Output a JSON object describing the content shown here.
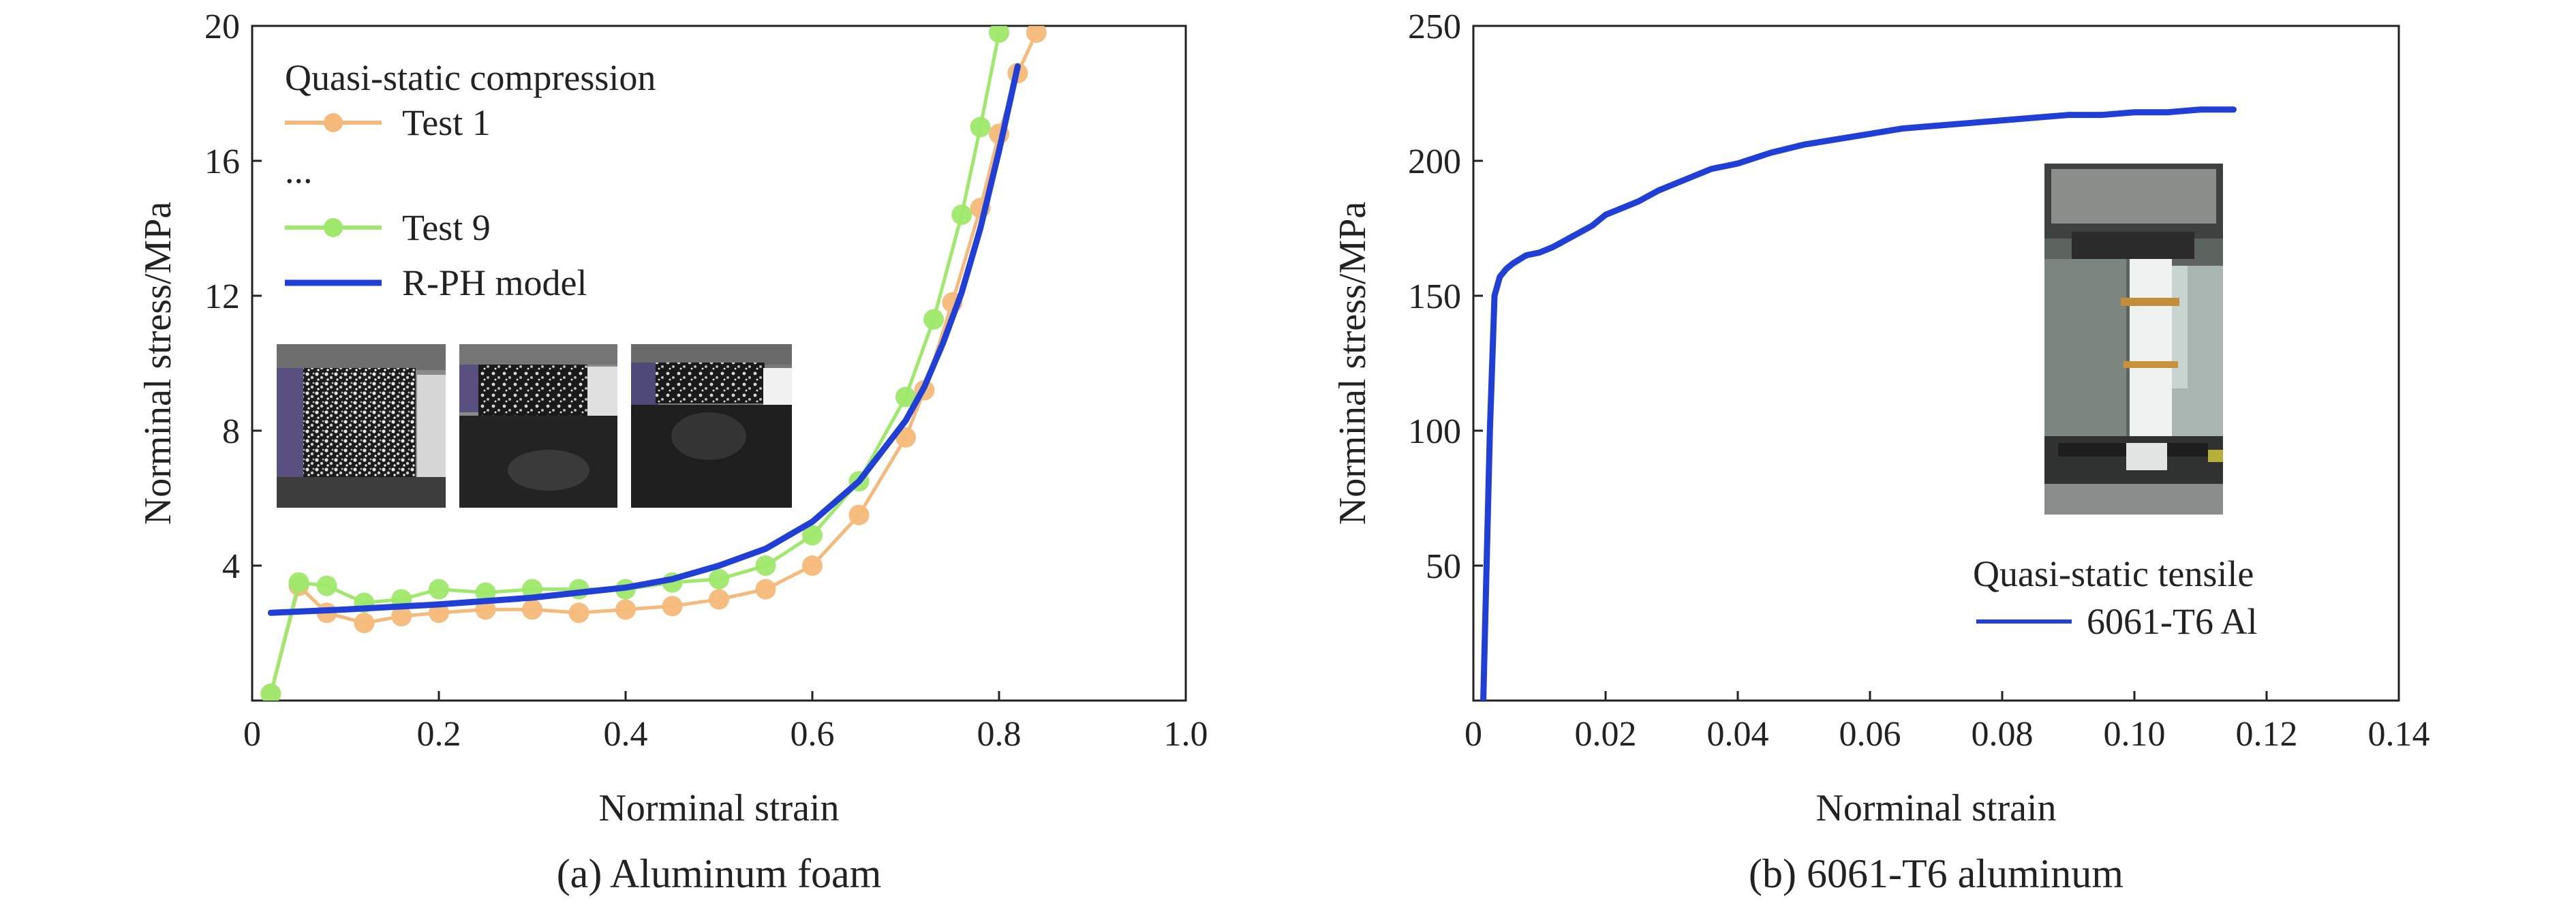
{
  "chart_data": [
    {
      "type": "line",
      "caption": "(a) Aluminum foam",
      "xlabel": "Norminal strain",
      "ylabel": "Norminal stress/MPa",
      "xlim": [
        0,
        1.0
      ],
      "ylim": [
        0,
        20
      ],
      "xticks": [
        "0",
        "0.2",
        "0.4",
        "0.6",
        "0.8",
        "1.0"
      ],
      "xtick_values": [
        0,
        0.2,
        0.4,
        0.6,
        0.8,
        1.0
      ],
      "yticks": [
        "4",
        "8",
        "12",
        "16",
        "20"
      ],
      "ytick_values": [
        4,
        8,
        12,
        16,
        20
      ],
      "legend": {
        "title": "Quasi-static compression",
        "ellipsis": "...",
        "placement": "top-left",
        "entries": [
          "Test 1",
          "Test 9",
          "R-PH model"
        ]
      },
      "inset": "three DIC speckle images of foam specimen at increasing compression",
      "series": [
        {
          "name": "Test 1",
          "color": "#f5b97a",
          "marker": "circle",
          "x": [
            0.02,
            0.05,
            0.08,
            0.12,
            0.16,
            0.2,
            0.25,
            0.3,
            0.35,
            0.4,
            0.45,
            0.5,
            0.55,
            0.6,
            0.65,
            0.7,
            0.72,
            0.75,
            0.78,
            0.8,
            0.82,
            0.84
          ],
          "y": [
            0.2,
            3.4,
            2.6,
            2.3,
            2.5,
            2.6,
            2.7,
            2.7,
            2.6,
            2.7,
            2.8,
            3.0,
            3.3,
            4.0,
            5.5,
            7.8,
            9.2,
            11.8,
            14.6,
            16.8,
            18.6,
            19.8
          ]
        },
        {
          "name": "Test 9",
          "color": "#9ee86a",
          "marker": "circle",
          "x": [
            0.02,
            0.05,
            0.08,
            0.12,
            0.16,
            0.2,
            0.25,
            0.3,
            0.35,
            0.4,
            0.45,
            0.5,
            0.55,
            0.6,
            0.65,
            0.7,
            0.73,
            0.76,
            0.78,
            0.8
          ],
          "y": [
            0.2,
            3.5,
            3.4,
            2.9,
            3.0,
            3.3,
            3.2,
            3.3,
            3.3,
            3.3,
            3.5,
            3.6,
            4.0,
            4.9,
            6.5,
            9.0,
            11.3,
            14.4,
            17.0,
            19.8
          ]
        },
        {
          "name": "R-PH model",
          "color": "#1f3fd6",
          "marker": "none",
          "x": [
            0.02,
            0.1,
            0.2,
            0.3,
            0.4,
            0.45,
            0.5,
            0.55,
            0.6,
            0.65,
            0.7,
            0.72,
            0.74,
            0.76,
            0.78,
            0.8,
            0.82
          ],
          "y": [
            2.6,
            2.7,
            2.85,
            3.05,
            3.35,
            3.6,
            4.0,
            4.5,
            5.3,
            6.5,
            8.3,
            9.3,
            10.6,
            12.1,
            14.0,
            16.3,
            18.8
          ]
        }
      ]
    },
    {
      "type": "line",
      "caption": "(b) 6061-T6 aluminum",
      "xlabel": "Norminal strain",
      "ylabel": "Norminal stress/MPa",
      "xlim": [
        0,
        0.14
      ],
      "ylim": [
        0,
        250
      ],
      "xticks": [
        "0",
        "0.02",
        "0.04",
        "0.06",
        "0.08",
        "0.10",
        "0.12",
        "0.14"
      ],
      "xtick_values": [
        0,
        0.02,
        0.04,
        0.06,
        0.08,
        0.1,
        0.12,
        0.14
      ],
      "yticks": [
        "50",
        "100",
        "150",
        "200",
        "250"
      ],
      "ytick_values": [
        50,
        100,
        150,
        200,
        250
      ],
      "legend": {
        "title": "Quasi-static tensile",
        "placement": "bottom-right",
        "entries": [
          "6061-T6 Al"
        ]
      },
      "inset": "photo of tensile specimen mounted in testing machine grips",
      "series": [
        {
          "name": "6061-T6 Al",
          "color": "#1f3fd6",
          "x": [
            0.0015,
            0.0025,
            0.0032,
            0.004,
            0.005,
            0.006,
            0.008,
            0.01,
            0.012,
            0.015,
            0.018,
            0.02,
            0.022,
            0.025,
            0.028,
            0.03,
            0.033,
            0.036,
            0.04,
            0.045,
            0.05,
            0.055,
            0.06,
            0.065,
            0.07,
            0.075,
            0.08,
            0.085,
            0.09,
            0.095,
            0.1,
            0.105,
            0.11,
            0.115
          ],
          "y": [
            0,
            100,
            150,
            157,
            160,
            162,
            165,
            166,
            168,
            172,
            176,
            180,
            182,
            185,
            189,
            191,
            194,
            197,
            199,
            203,
            206,
            208,
            210,
            212,
            213,
            214,
            215,
            216,
            217,
            217,
            218,
            218,
            219,
            219
          ]
        }
      ]
    }
  ]
}
